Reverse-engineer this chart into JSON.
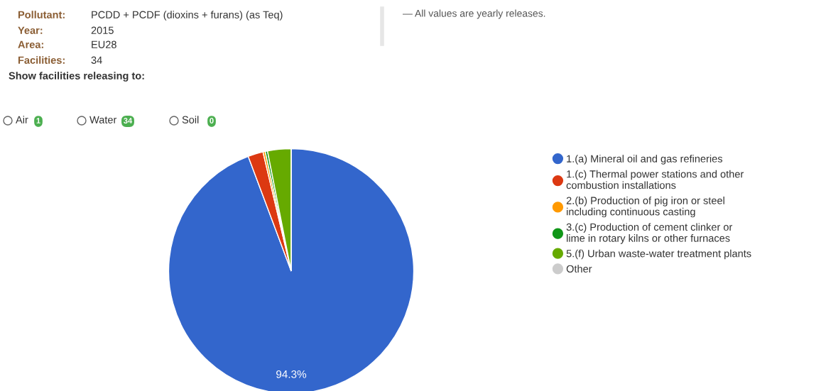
{
  "chart_data": {
    "type": "pie",
    "categories": [
      "1.(a) Mineral oil and gas refineries",
      "1.(c) Thermal power stations and other combustion installations",
      "2.(b) Production of pig iron or steel including continuous casting",
      "3.(c) Production of cement clinker or lime in rotary kilns or other furnaces",
      "5.(f) Urban waste-water treatment plants",
      "Other"
    ],
    "values": [
      94.3,
      2.0,
      0.3,
      0.3,
      3.1,
      0
    ],
    "colors": [
      "#3366cc",
      "#dc3912",
      "#ff9900",
      "#109618",
      "#66aa00",
      "#cccccc"
    ],
    "value_labels": [
      "94.3%",
      null,
      null,
      null,
      null,
      null
    ],
    "legend": "right",
    "annotations": [
      "Pollutant:",
      "PCDD + PCDF (dioxins + furans) (as Teq)",
      "Year:",
      "2015",
      "Area:",
      "EU28",
      "Facilities:",
      "34",
      "Show facilities releasing to:",
      "Air",
      "1",
      "Water",
      "34",
      "Soil",
      "0",
      "— All values are yearly releases."
    ]
  }
}
